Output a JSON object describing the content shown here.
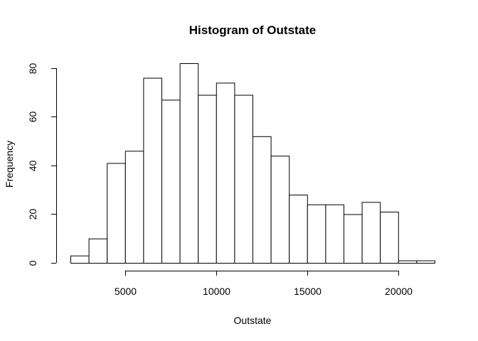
{
  "chart_data": {
    "type": "bar",
    "title": "Histogram of Outstate",
    "xlabel": "Outstate",
    "ylabel": "Frequency",
    "bin_edges": [
      2000,
      3000,
      4000,
      5000,
      6000,
      7000,
      8000,
      9000,
      10000,
      11000,
      12000,
      13000,
      14000,
      15000,
      16000,
      17000,
      18000,
      19000,
      20000,
      21000,
      22000
    ],
    "values": [
      3,
      10,
      41,
      46,
      76,
      67,
      82,
      69,
      74,
      69,
      52,
      44,
      28,
      24,
      24,
      20,
      25,
      21,
      1,
      1
    ],
    "x_ticks": [
      5000,
      10000,
      15000,
      20000
    ],
    "x_tick_labels": [
      "5000",
      "10000",
      "15000",
      "20000"
    ],
    "y_ticks": [
      0,
      20,
      40,
      60,
      80
    ],
    "y_tick_labels": [
      "0",
      "20",
      "40",
      "60",
      "80"
    ],
    "xlim": [
      2000,
      22000
    ],
    "ylim": [
      0,
      82
    ],
    "grid": false,
    "legend": "none",
    "bar_fill": "#ffffff",
    "bar_stroke": "#000000"
  }
}
